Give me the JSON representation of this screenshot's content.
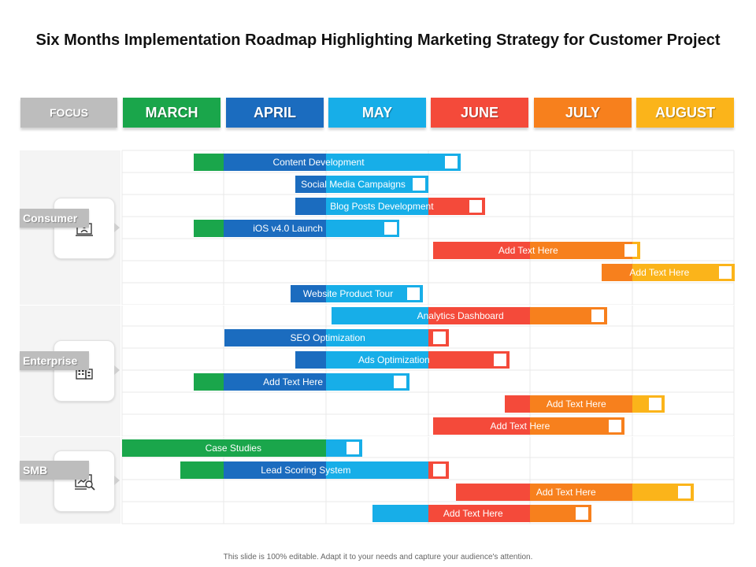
{
  "title": "Six Months Implementation Roadmap Highlighting Marketing Strategy for Customer Project",
  "header": {
    "focus": "FOCUS",
    "months": [
      "MARCH",
      "APRIL",
      "MAY",
      "JUNE",
      "JULY",
      "AUGUST"
    ]
  },
  "colors": {
    "focus": "#bdbdbd",
    "months": [
      "#1aa64b",
      "#1b6cbf",
      "#17aee8",
      "#f44a3a",
      "#f7801d",
      "#fbb41a"
    ]
  },
  "segments": [
    {
      "label": "Consumer",
      "icon": "presentation-icon"
    },
    {
      "label": "Enterprise",
      "icon": "building-icon"
    },
    {
      "label": "SMB",
      "icon": "analytics-icon"
    }
  ],
  "tasks": [
    {
      "label": "Content Development",
      "start": 0.7,
      "end": 3.32,
      "color_months": [
        0,
        1,
        2
      ]
    },
    {
      "label": "Social Media Campaigns",
      "start": 1.7,
      "end": 3.0,
      "color_months": [
        1,
        2
      ]
    },
    {
      "label": "Blog Posts Development",
      "start": 1.7,
      "end": 3.56,
      "color_months": [
        1,
        2,
        3
      ]
    },
    {
      "label": "iOS v4.0 Launch",
      "start": 0.7,
      "end": 2.72,
      "color_months": [
        0,
        1,
        2
      ]
    },
    {
      "label": "Add Text Here",
      "start": 3.05,
      "end": 5.08,
      "color_months": [
        3,
        4,
        5
      ]
    },
    {
      "label": "Add Text Here",
      "start": 4.7,
      "end": 6.0,
      "color_months": [
        4,
        5
      ]
    },
    {
      "label": "Website Product Tour",
      "start": 1.65,
      "end": 2.95,
      "color_months": [
        1,
        2
      ]
    },
    {
      "label": "Analytics Dashboard",
      "start": 2.05,
      "end": 4.75,
      "color_months": [
        2,
        3,
        4
      ]
    },
    {
      "label": "SEO Optimization",
      "start": 1.0,
      "end": 3.2,
      "color_months": [
        1,
        2,
        3
      ]
    },
    {
      "label": "Ads Optimization",
      "start": 1.7,
      "end": 3.8,
      "color_months": [
        1,
        2,
        3
      ]
    },
    {
      "label": "Add Text Here",
      "start": 0.7,
      "end": 2.82,
      "color_months": [
        0,
        1,
        2
      ]
    },
    {
      "label": "Add Text Here",
      "start": 3.75,
      "end": 5.32,
      "color_months": [
        3,
        4,
        5
      ]
    },
    {
      "label": "Add Text Here",
      "start": 3.05,
      "end": 4.92,
      "color_months": [
        3,
        4
      ]
    },
    {
      "label": "Case Studies",
      "start": 0.0,
      "end": 2.35,
      "color_months": [
        0,
        2
      ]
    },
    {
      "label": "Lead Scoring System",
      "start": 0.57,
      "end": 3.2,
      "color_months": [
        0,
        1,
        2,
        3
      ]
    },
    {
      "label": "Add Text Here",
      "start": 3.27,
      "end": 5.6,
      "color_months": [
        3,
        4,
        5
      ]
    },
    {
      "label": "Add Text Here",
      "start": 2.45,
      "end": 4.6,
      "color_months": [
        2,
        3,
        4
      ]
    }
  ],
  "footer": "This slide is 100% editable. Adapt it to your needs and capture your audience's attention."
}
